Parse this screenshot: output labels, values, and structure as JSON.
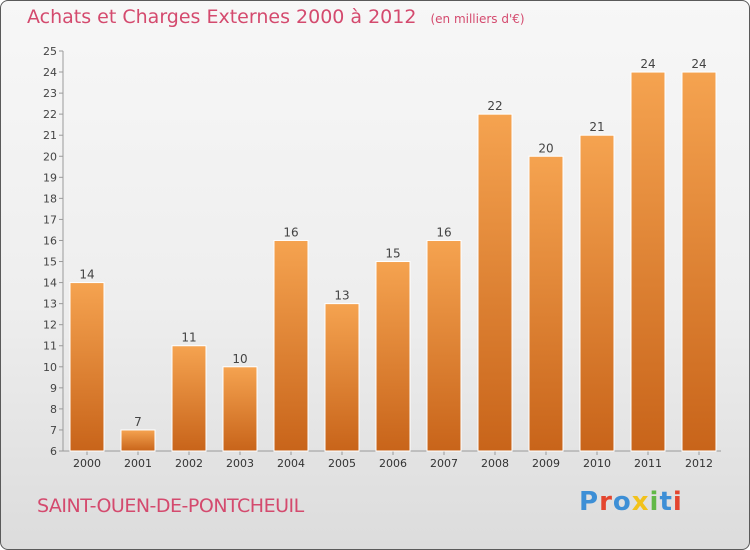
{
  "header": {
    "title": "Achats et Charges Externes 2000 à 2012",
    "subtitle": "(en milliers d'€)"
  },
  "location": "SAINT-OUEN-DE-PONTCHEUIL",
  "brand": {
    "name": "Proxiti",
    "letter_colors": [
      "#3d8fd6",
      "#e4452e",
      "#3d8fd6",
      "#f2c21b",
      "#61b846",
      "#3d8fd6",
      "#e4452e"
    ]
  },
  "colors": {
    "bar_top": "#f5a350",
    "bar_bottom": "#c8641a",
    "title": "#d44a6e"
  },
  "chart_data": {
    "type": "bar",
    "title": "Achats et Charges Externes 2000 à 2012",
    "categories": [
      "2000",
      "2001",
      "2002",
      "2003",
      "2004",
      "2005",
      "2006",
      "2007",
      "2008",
      "2009",
      "2010",
      "2011",
      "2012"
    ],
    "values": [
      14,
      7,
      11,
      10,
      16,
      13,
      15,
      16,
      22,
      20,
      21,
      24,
      24
    ],
    "ylim": [
      6,
      25
    ],
    "yticks": [
      6,
      7,
      8,
      9,
      10,
      11,
      12,
      13,
      14,
      15,
      16,
      17,
      18,
      19,
      20,
      21,
      22,
      23,
      24,
      25
    ],
    "grid": false,
    "legend": "none"
  }
}
